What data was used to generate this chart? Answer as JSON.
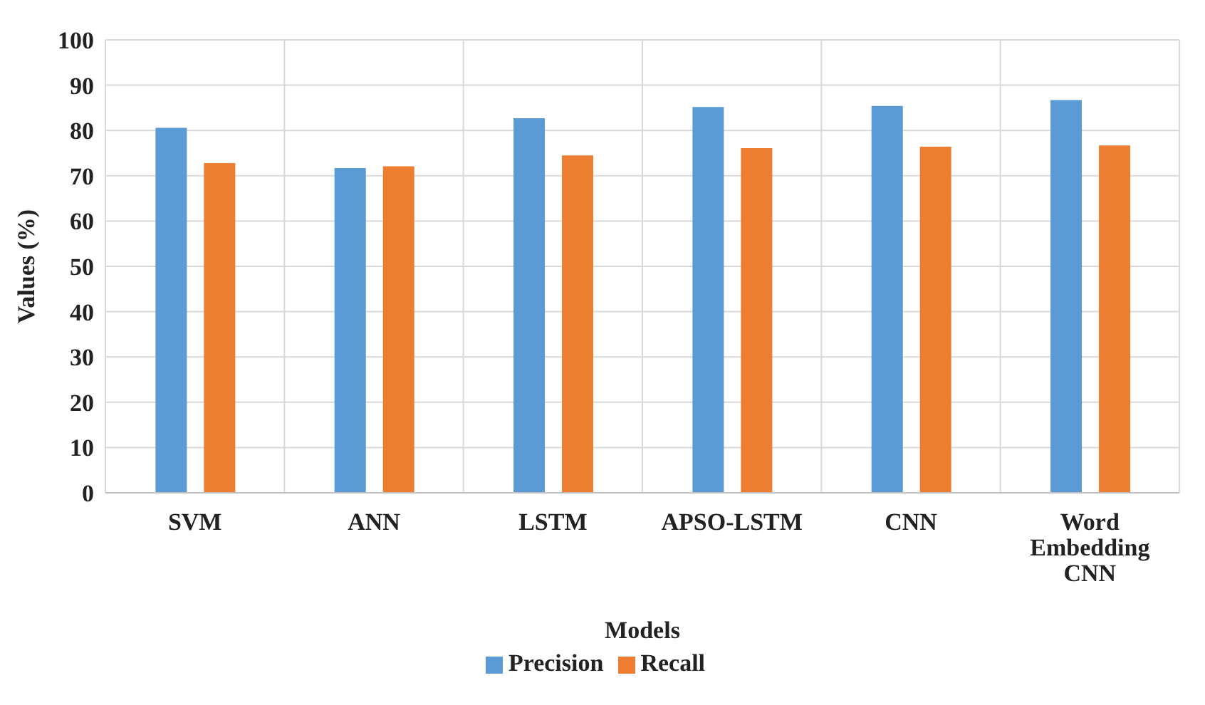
{
  "chart_data": {
    "type": "bar",
    "xlabel": "Models",
    "ylabel": "Values (%)",
    "categories": [
      "SVM",
      "ANN",
      "LSTM",
      "APSO-LSTM",
      "CNN",
      "Word Embedding CNN"
    ],
    "series": [
      {
        "name": "Precision",
        "color": "#5b9bd5",
        "values": [
          80.6,
          71.7,
          82.7,
          85.2,
          85.4,
          86.7
        ]
      },
      {
        "name": "Recall",
        "color": "#ed7d31",
        "values": [
          72.8,
          72.1,
          74.5,
          76.1,
          76.4,
          76.7
        ]
      }
    ],
    "ylim": [
      0,
      100
    ],
    "yticks": [
      0,
      10,
      20,
      30,
      40,
      50,
      60,
      70,
      80,
      90,
      100
    ],
    "grid": true,
    "legend": "bottom"
  }
}
